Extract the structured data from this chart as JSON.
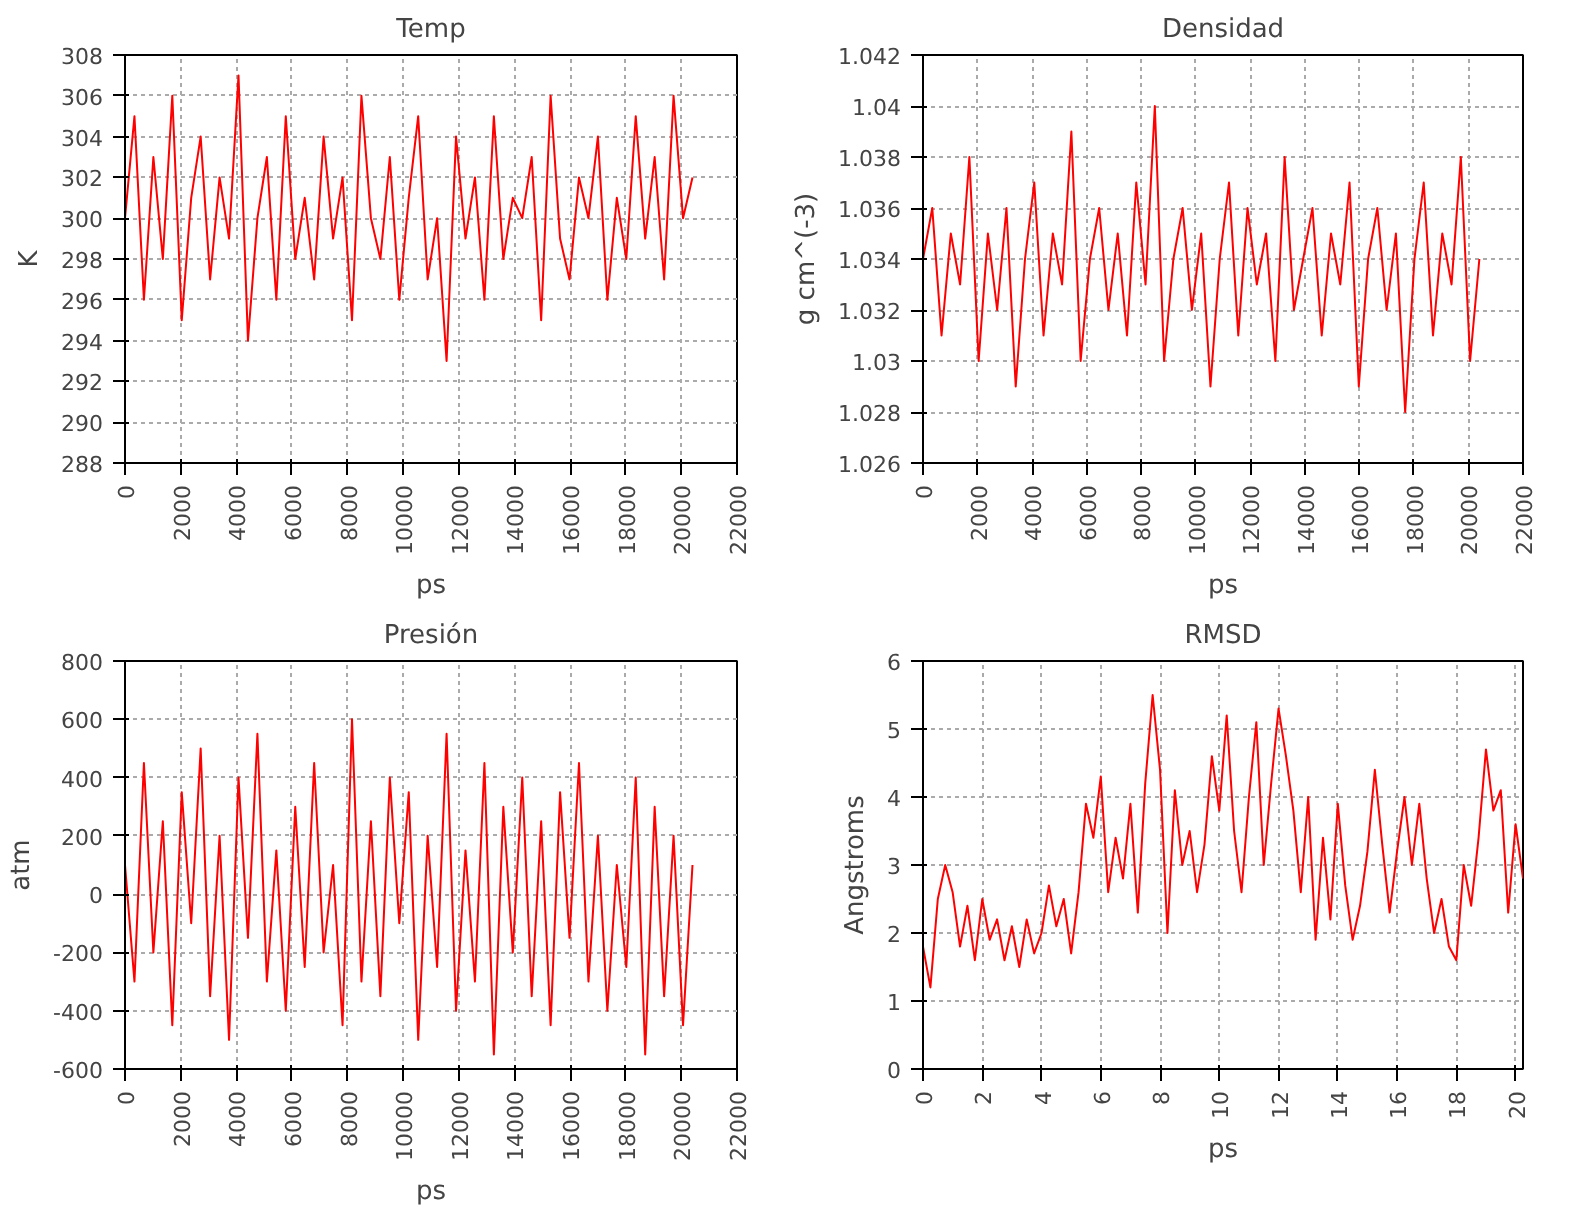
{
  "chart_data": [
    {
      "type": "line",
      "title": "Temp",
      "xlabel": "ps",
      "ylabel": "K",
      "color": "#ff0000",
      "grid": true,
      "line_style": "solid",
      "xlim": [
        0,
        22000
      ],
      "ylim": [
        288,
        308
      ],
      "xticks": [
        0,
        2000,
        4000,
        6000,
        8000,
        10000,
        12000,
        14000,
        16000,
        18000,
        20000,
        22000
      ],
      "yticks": [
        288,
        290,
        292,
        294,
        296,
        298,
        300,
        302,
        304,
        306,
        308
      ],
      "x": [
        0,
        340,
        680,
        1020,
        1360,
        1700,
        2040,
        2380,
        2720,
        3060,
        3400,
        3740,
        4080,
        4420,
        4760,
        5100,
        5440,
        5780,
        6120,
        6460,
        6800,
        7140,
        7480,
        7820,
        8160,
        8500,
        8840,
        9180,
        9520,
        9860,
        10200,
        10540,
        10880,
        11220,
        11560,
        11900,
        12240,
        12580,
        12920,
        13260,
        13600,
        13940,
        14280,
        14620,
        14960,
        15300,
        15640,
        15980,
        16320,
        16660,
        17000,
        17340,
        17680,
        18020,
        18360,
        18700,
        19040,
        19380,
        19720,
        20060,
        20400
      ],
      "values": [
        300,
        305,
        296,
        303,
        298,
        306,
        295,
        301,
        304,
        297,
        302,
        299,
        307,
        294,
        300,
        303,
        296,
        305,
        298,
        301,
        297,
        304,
        299,
        302,
        295,
        306,
        300,
        298,
        303,
        296,
        301,
        305,
        297,
        300,
        293,
        304,
        299,
        302,
        296,
        305,
        298,
        301,
        300,
        303,
        295,
        306,
        299,
        297,
        302,
        300,
        304,
        296,
        301,
        298,
        305,
        299,
        303,
        297,
        306,
        300,
        302
      ]
    },
    {
      "type": "line",
      "title": "Densidad",
      "xlabel": "ps",
      "ylabel": "g cm^(-3)",
      "color": "#ff0000",
      "grid": true,
      "line_style": "solid",
      "xlim": [
        0,
        22000
      ],
      "ylim": [
        1.026,
        1.042
      ],
      "xticks": [
        0,
        2000,
        4000,
        6000,
        8000,
        10000,
        12000,
        14000,
        16000,
        18000,
        20000,
        22000
      ],
      "yticks": [
        1.026,
        1.028,
        1.03,
        1.032,
        1.034,
        1.036,
        1.038,
        1.04,
        1.042
      ],
      "x": [
        0,
        340,
        680,
        1020,
        1360,
        1700,
        2040,
        2380,
        2720,
        3060,
        3400,
        3740,
        4080,
        4420,
        4760,
        5100,
        5440,
        5780,
        6120,
        6460,
        6800,
        7140,
        7480,
        7820,
        8160,
        8500,
        8840,
        9180,
        9520,
        9860,
        10200,
        10540,
        10880,
        11220,
        11560,
        11900,
        12240,
        12580,
        12920,
        13260,
        13600,
        13940,
        14280,
        14620,
        14960,
        15300,
        15640,
        15980,
        16320,
        16660,
        17000,
        17340,
        17680,
        18020,
        18360,
        18700,
        19040,
        19380,
        19720,
        20060,
        20400
      ],
      "values": [
        1.034,
        1.036,
        1.031,
        1.035,
        1.033,
        1.038,
        1.03,
        1.035,
        1.032,
        1.036,
        1.029,
        1.034,
        1.037,
        1.031,
        1.035,
        1.033,
        1.039,
        1.03,
        1.034,
        1.036,
        1.032,
        1.035,
        1.031,
        1.037,
        1.033,
        1.04,
        1.03,
        1.034,
        1.036,
        1.032,
        1.035,
        1.029,
        1.034,
        1.037,
        1.031,
        1.036,
        1.033,
        1.035,
        1.03,
        1.038,
        1.032,
        1.034,
        1.036,
        1.031,
        1.035,
        1.033,
        1.037,
        1.029,
        1.034,
        1.036,
        1.032,
        1.035,
        1.028,
        1.034,
        1.037,
        1.031,
        1.035,
        1.033,
        1.038,
        1.03,
        1.034
      ]
    },
    {
      "type": "line",
      "title": "Presión",
      "xlabel": "ps",
      "ylabel": "atm",
      "color": "#ff0000",
      "grid": true,
      "line_style": "solid",
      "xlim": [
        0,
        22000
      ],
      "ylim": [
        -600,
        800
      ],
      "xticks": [
        0,
        2000,
        4000,
        6000,
        8000,
        10000,
        12000,
        14000,
        16000,
        18000,
        20000,
        22000
      ],
      "yticks": [
        -600,
        -400,
        -200,
        0,
        200,
        400,
        600,
        800
      ],
      "x": [
        0,
        340,
        680,
        1020,
        1360,
        1700,
        2040,
        2380,
        2720,
        3060,
        3400,
        3740,
        4080,
        4420,
        4760,
        5100,
        5440,
        5780,
        6120,
        6460,
        6800,
        7140,
        7480,
        7820,
        8160,
        8500,
        8840,
        9180,
        9520,
        9860,
        10200,
        10540,
        10880,
        11220,
        11560,
        11900,
        12240,
        12580,
        12920,
        13260,
        13600,
        13940,
        14280,
        14620,
        14960,
        15300,
        15640,
        15980,
        16320,
        16660,
        17000,
        17340,
        17680,
        18020,
        18360,
        18700,
        19040,
        19380,
        19720,
        20060,
        20400
      ],
      "values": [
        100,
        -300,
        450,
        -200,
        250,
        -450,
        350,
        -100,
        500,
        -350,
        200,
        -500,
        400,
        -150,
        550,
        -300,
        150,
        -400,
        300,
        -250,
        450,
        -200,
        100,
        -450,
        600,
        -300,
        250,
        -350,
        400,
        -100,
        350,
        -500,
        200,
        -250,
        550,
        -400,
        150,
        -300,
        450,
        -550,
        300,
        -200,
        400,
        -350,
        250,
        -450,
        350,
        -150,
        450,
        -300,
        200,
        -400,
        100,
        -250,
        400,
        -550,
        300,
        -350,
        200,
        -450,
        100
      ]
    },
    {
      "type": "line",
      "title": "RMSD",
      "xlabel": "ps",
      "ylabel": "Angstroms",
      "color": "#ff0000",
      "grid": true,
      "line_style": "solid",
      "xlim": [
        0,
        20.25
      ],
      "ylim": [
        0,
        6
      ],
      "xticks": [
        0,
        2,
        4,
        6,
        8,
        10,
        12,
        14,
        16,
        18,
        20
      ],
      "yticks": [
        0,
        1,
        2,
        3,
        4,
        5,
        6
      ],
      "x": [
        0,
        0.25,
        0.5,
        0.75,
        1,
        1.25,
        1.5,
        1.75,
        2,
        2.25,
        2.5,
        2.75,
        3,
        3.25,
        3.5,
        3.75,
        4,
        4.25,
        4.5,
        4.75,
        5,
        5.25,
        5.5,
        5.75,
        6,
        6.25,
        6.5,
        6.75,
        7,
        7.25,
        7.5,
        7.75,
        8,
        8.25,
        8.5,
        8.75,
        9,
        9.25,
        9.5,
        9.75,
        10,
        10.25,
        10.5,
        10.75,
        11,
        11.25,
        11.5,
        11.75,
        12,
        12.25,
        12.5,
        12.75,
        13,
        13.25,
        13.5,
        13.75,
        14,
        14.25,
        14.5,
        14.75,
        15,
        15.25,
        15.5,
        15.75,
        16,
        16.25,
        16.5,
        16.75,
        17,
        17.25,
        17.5,
        17.75,
        18,
        18.25,
        18.5,
        18.75,
        19,
        19.25,
        19.5,
        19.75,
        20,
        20.25
      ],
      "values": [
        1.8,
        1.2,
        2.5,
        3.0,
        2.6,
        1.8,
        2.4,
        1.6,
        2.5,
        1.9,
        2.2,
        1.6,
        2.1,
        1.5,
        2.2,
        1.7,
        2.0,
        2.7,
        2.1,
        2.5,
        1.7,
        2.6,
        3.9,
        3.4,
        4.3,
        2.6,
        3.4,
        2.8,
        3.9,
        2.3,
        4.2,
        5.5,
        4.4,
        2.0,
        4.1,
        3.0,
        3.5,
        2.6,
        3.3,
        4.6,
        3.8,
        5.2,
        3.5,
        2.6,
        4.0,
        5.1,
        3.0,
        4.2,
        5.3,
        4.6,
        3.8,
        2.6,
        4.0,
        1.9,
        3.4,
        2.2,
        3.9,
        2.7,
        1.9,
        2.4,
        3.2,
        4.4,
        3.3,
        2.3,
        3.2,
        4.0,
        3.0,
        3.9,
        2.8,
        2.0,
        2.5,
        1.8,
        1.6,
        3.0,
        2.4,
        3.4,
        4.7,
        3.8,
        4.1,
        2.3,
        3.6,
        2.8
      ]
    }
  ]
}
